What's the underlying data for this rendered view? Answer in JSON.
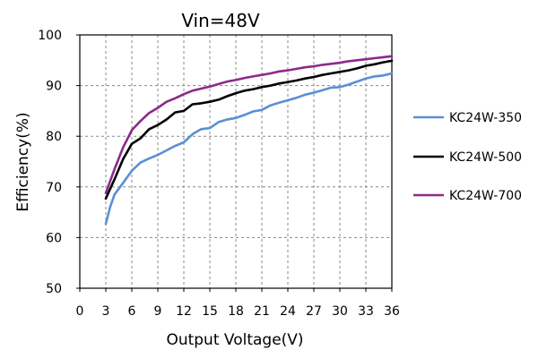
{
  "chart_data": {
    "type": "line",
    "title": "Vin=48V",
    "xlabel": "Output Voltage(V)",
    "ylabel": "Efficiency(%)",
    "xlim": [
      0,
      36
    ],
    "ylim": [
      50,
      100
    ],
    "xticks": [
      0,
      3,
      6,
      9,
      12,
      15,
      18,
      21,
      24,
      27,
      30,
      33,
      36
    ],
    "yticks": [
      50,
      60,
      70,
      80,
      90,
      100
    ],
    "grid": true,
    "legend_position": "right",
    "series": [
      {
        "name": "KC24W-350",
        "color": "#5b8fd4",
        "x": [
          3,
          3.5,
          4,
          5,
          6,
          7,
          8,
          9,
          10,
          11,
          12,
          13,
          14,
          15,
          16,
          17,
          18,
          19,
          20,
          21,
          22,
          23,
          24,
          25,
          26,
          27,
          28,
          29,
          30,
          31,
          32,
          33,
          34,
          35,
          36
        ],
        "y": [
          62.7,
          66.0,
          68.5,
          70.8,
          73.2,
          74.8,
          75.6,
          76.3,
          77.2,
          78.1,
          78.8,
          80.4,
          81.4,
          81.6,
          82.8,
          83.3,
          83.6,
          84.2,
          84.9,
          85.2,
          86.1,
          86.6,
          87.1,
          87.6,
          88.2,
          88.6,
          89.1,
          89.6,
          89.7,
          90.2,
          90.8,
          91.4,
          91.8,
          92.0,
          92.4
        ]
      },
      {
        "name": "KC24W-500",
        "color": "#000000",
        "x": [
          3,
          4,
          5,
          6,
          7,
          8,
          9,
          10,
          11,
          12,
          13,
          14,
          15,
          16,
          17,
          18,
          19,
          20,
          21,
          22,
          23,
          24,
          25,
          26,
          27,
          28,
          29,
          30,
          31,
          32,
          33,
          34,
          35,
          36
        ],
        "y": [
          67.7,
          71.5,
          75.5,
          78.5,
          79.6,
          81.4,
          82.2,
          83.3,
          84.7,
          85.0,
          86.3,
          86.5,
          86.8,
          87.2,
          87.9,
          88.5,
          89.0,
          89.3,
          89.7,
          90.0,
          90.4,
          90.7,
          91.0,
          91.4,
          91.7,
          92.1,
          92.4,
          92.7,
          93.0,
          93.4,
          93.9,
          94.2,
          94.6,
          94.9
        ]
      },
      {
        "name": "KC24W-700",
        "color": "#8b2a8b",
        "x": [
          3,
          4,
          5,
          6,
          7,
          8,
          9,
          10,
          11,
          12,
          13,
          14,
          15,
          16,
          17,
          18,
          19,
          20,
          21,
          22,
          23,
          24,
          25,
          26,
          27,
          28,
          29,
          30,
          31,
          32,
          33,
          34,
          35,
          36
        ],
        "y": [
          68.8,
          73.5,
          77.8,
          81.2,
          83.0,
          84.6,
          85.6,
          86.8,
          87.5,
          88.3,
          89.0,
          89.4,
          89.8,
          90.3,
          90.8,
          91.1,
          91.5,
          91.8,
          92.1,
          92.4,
          92.8,
          93.0,
          93.3,
          93.6,
          93.8,
          94.1,
          94.3,
          94.5,
          94.8,
          95.0,
          95.2,
          95.4,
          95.6,
          95.8
        ]
      }
    ]
  }
}
